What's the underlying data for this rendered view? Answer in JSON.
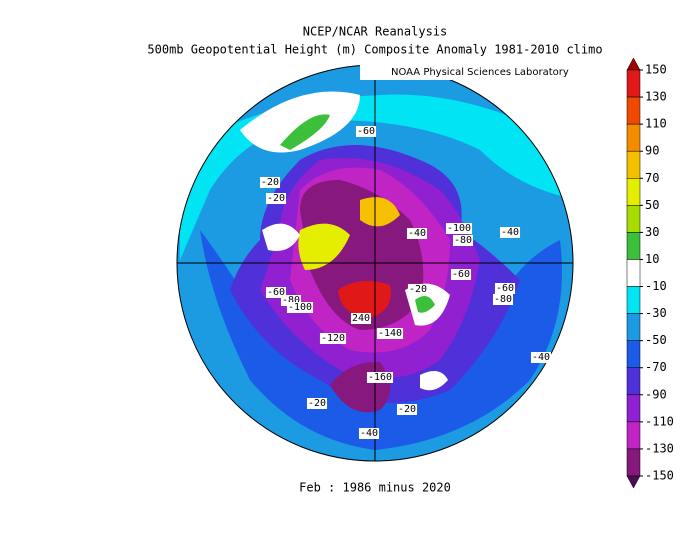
{
  "header": {
    "title": "NCEP/NCAR Reanalysis",
    "subtitle": "500mb Geopotential Height (m) Composite Anomaly 1981-2010 climo",
    "source": "NOAA Physical Sciences Laboratory"
  },
  "footer": "Feb : 1986 minus 2020",
  "map_labels": [
    "-20",
    "-20",
    "-60",
    "-100",
    "-80",
    "-40",
    "-40",
    "-60",
    "-60",
    "-80",
    "-20",
    "-60",
    "-80",
    "-100",
    "-120",
    "240",
    "-140",
    "-160",
    "-40",
    "-20",
    "-20",
    "-40"
  ],
  "colorbar": {
    "ticks": [
      150,
      130,
      110,
      90,
      70,
      50,
      30,
      10,
      -10,
      -30,
      -50,
      -70,
      -90,
      -110,
      -130,
      -150
    ],
    "colors": [
      "#a00000",
      "#e01818",
      "#f04a00",
      "#f58c00",
      "#f5c000",
      "#e6ee00",
      "#a6dc00",
      "#3cc03c",
      "#ffffff",
      "#00e4f4",
      "#1c9ae2",
      "#1c5ae8",
      "#5030d8",
      "#9020d0",
      "#c024c4",
      "#86187e",
      "#4e0c52"
    ]
  }
}
